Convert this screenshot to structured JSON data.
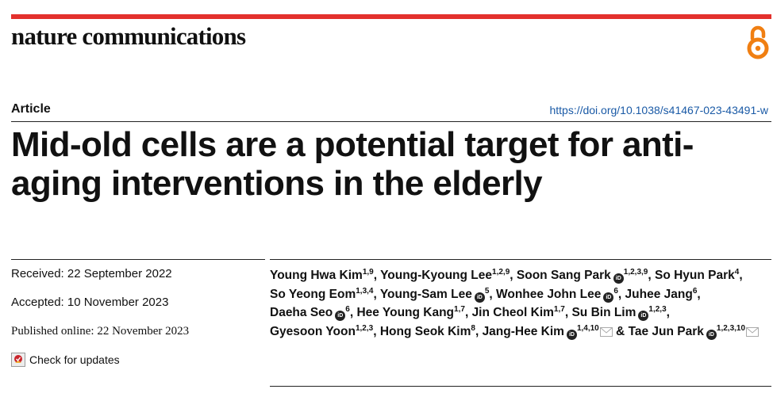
{
  "journal": {
    "name": "nature communications"
  },
  "article": {
    "type": "Article",
    "doi": "https://doi.org/10.1038/s41467-023-43491-w",
    "title": "Mid-old cells are a potential target for anti-aging interventions in the elderly"
  },
  "dates": {
    "received": "Received: 22 September 2022",
    "accepted": "Accepted: 10 November 2023",
    "published": "Published online: 22 November 2023"
  },
  "check_updates": {
    "label": "Check for updates"
  },
  "icons": {
    "open_access": "open-access-icon",
    "orcid": "orcid-icon",
    "email": "email-icon",
    "check_updates": "crossmark-icon"
  },
  "colors": {
    "brand_red": "#e3312d",
    "open_access": "#f07f12",
    "doi_link": "#1a5aa6"
  },
  "authors": [
    {
      "name": "Young Hwa Kim",
      "aff": "1,9",
      "orcid": false,
      "corr": false
    },
    {
      "name": "Young-Kyoung Lee",
      "aff": "1,2,9",
      "orcid": false,
      "corr": false
    },
    {
      "name": "Soon Sang Park",
      "aff": "1,2,3,9",
      "orcid": true,
      "corr": false
    },
    {
      "name": "So Hyun Park",
      "aff": "4",
      "orcid": false,
      "corr": false
    },
    {
      "name": "So Yeong Eom",
      "aff": "1,3,4",
      "orcid": false,
      "corr": false
    },
    {
      "name": "Young-Sam Lee",
      "aff": "5",
      "orcid": true,
      "corr": false
    },
    {
      "name": "Wonhee John Lee",
      "aff": "6",
      "orcid": true,
      "corr": false
    },
    {
      "name": "Juhee Jang",
      "aff": "6",
      "orcid": false,
      "corr": false
    },
    {
      "name": "Daeha Seo",
      "aff": "6",
      "orcid": true,
      "corr": false
    },
    {
      "name": "Hee Young Kang",
      "aff": "1,7",
      "orcid": false,
      "corr": false
    },
    {
      "name": "Jin Cheol Kim",
      "aff": "1,7",
      "orcid": false,
      "corr": false
    },
    {
      "name": "Su Bin Lim",
      "aff": "1,2,3",
      "orcid": true,
      "corr": false
    },
    {
      "name": "Gyesoon Yoon",
      "aff": "1,2,3",
      "orcid": false,
      "corr": false
    },
    {
      "name": "Hong Seok Kim",
      "aff": "8",
      "orcid": false,
      "corr": false
    },
    {
      "name": "Jang-Hee Kim",
      "aff": "1,4,10",
      "orcid": true,
      "corr": true
    },
    {
      "name": "Tae Jun Park",
      "aff": "1,2,3,10",
      "orcid": true,
      "corr": true
    }
  ]
}
